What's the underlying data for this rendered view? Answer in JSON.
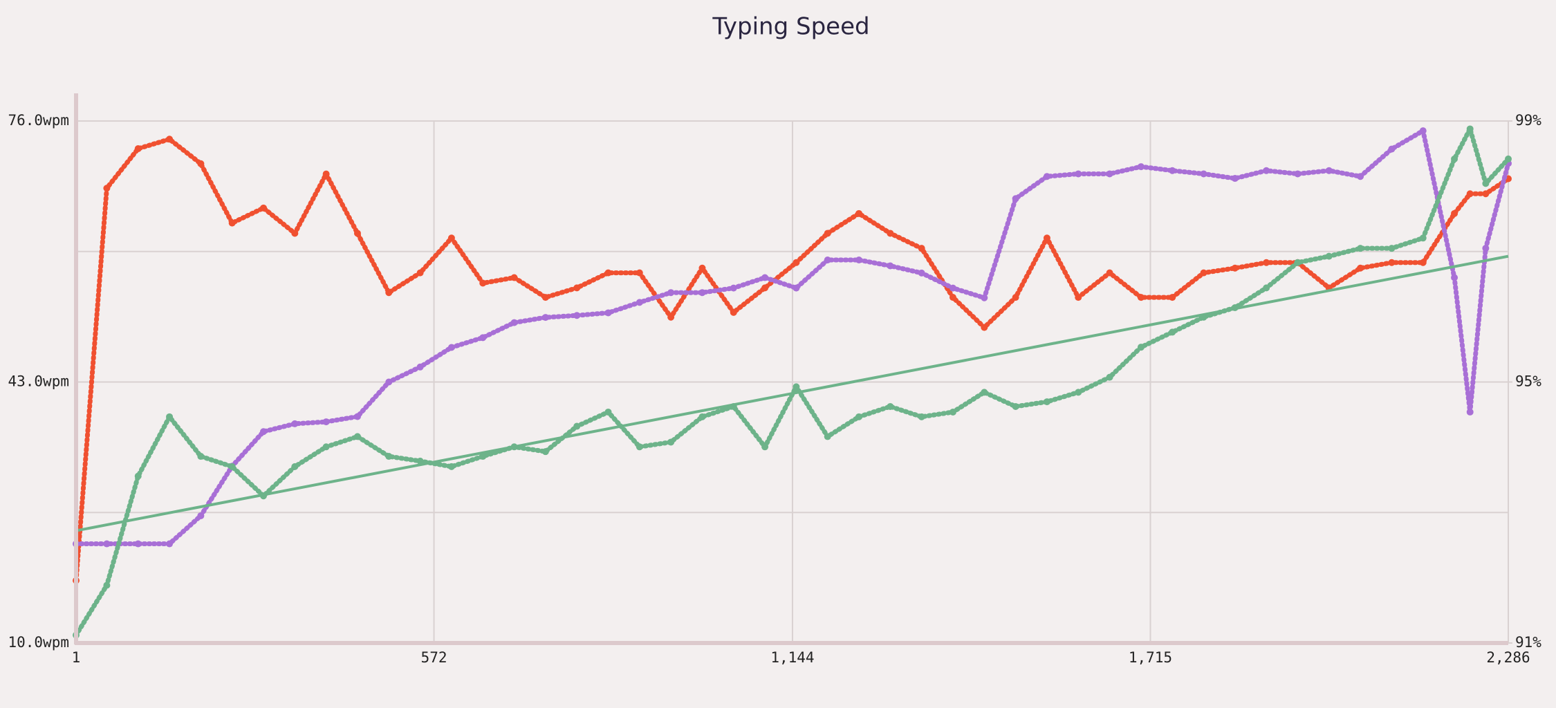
{
  "chart_data": {
    "type": "scatter",
    "title": "Typing Speed",
    "x": [
      1,
      50,
      100,
      150,
      200,
      250,
      300,
      350,
      400,
      450,
      500,
      550,
      600,
      650,
      700,
      750,
      800,
      850,
      900,
      950,
      1000,
      1050,
      1100,
      1150,
      1200,
      1250,
      1300,
      1350,
      1400,
      1450,
      1500,
      1550,
      1600,
      1650,
      1700,
      1750,
      1800,
      1850,
      1900,
      1950,
      2000,
      2050,
      2100,
      2150,
      2200,
      2225,
      2250,
      2286
    ],
    "series": [
      {
        "color": "#f05030",
        "style": "dots",
        "axis": "y",
        "values": [
          17.9,
          67.5,
          72.5,
          73.7,
          70.6,
          63.1,
          65,
          61.8,
          69.3,
          61.8,
          54.3,
          56.8,
          61.2,
          55.5,
          56.2,
          53.7,
          54.9,
          56.8,
          56.8,
          51.2,
          57.4,
          51.8,
          54.9,
          58.1,
          61.8,
          64.3,
          61.8,
          59.9,
          53.7,
          49.9,
          53.7,
          61.2,
          53.7,
          56.8,
          53.7,
          53.7,
          56.8,
          57.4,
          58.1,
          58.1,
          54.9,
          57.4,
          58.1,
          58.1,
          64.3,
          66.8,
          66.8,
          68.7
        ]
      },
      {
        "color": "#a86fd6",
        "style": "dots",
        "axis": "y2",
        "values": [
          92.52,
          92.52,
          92.52,
          92.52,
          92.95,
          93.71,
          94.24,
          94.36,
          94.39,
          94.47,
          95.0,
          95.23,
          95.53,
          95.68,
          95.91,
          95.99,
          96.02,
          96.06,
          96.22,
          96.37,
          96.37,
          96.44,
          96.6,
          96.44,
          96.87,
          96.87,
          96.78,
          96.67,
          96.44,
          96.29,
          97.81,
          98.15,
          98.19,
          98.19,
          98.3,
          98.24,
          98.19,
          98.12,
          98.24,
          98.19,
          98.24,
          98.15,
          98.57,
          98.85,
          96.6,
          94.54,
          97.05,
          98.35
        ]
      },
      {
        "color": "#6db38a",
        "style": "dots",
        "axis": "y",
        "values": [
          11.0,
          17.3,
          31.1,
          38.6,
          33.6,
          32.3,
          28.6,
          32.3,
          34.8,
          36.1,
          33.6,
          33.0,
          32.3,
          33.6,
          34.8,
          34.2,
          37.4,
          39.2,
          34.8,
          35.4,
          38.6,
          39.9,
          34.8,
          42.4,
          36.1,
          38.6,
          39.9,
          38.6,
          39.2,
          41.7,
          39.9,
          40.5,
          41.7,
          43.6,
          47.4,
          49.3,
          51.2,
          52.4,
          54.9,
          58.1,
          58.9,
          59.9,
          59.9,
          61.2,
          71.2,
          75.0,
          68.1,
          71.2
        ]
      },
      {
        "color": "#6db38a",
        "style": "line",
        "axis": "y",
        "x": [
          1,
          2286
        ],
        "values": [
          24.2,
          58.9
        ]
      }
    ],
    "xlim": [
      1,
      2286
    ],
    "xticks": [
      1,
      572,
      {
        "value": 1144,
        "label": "1,144"
      },
      {
        "value": 1715,
        "label": "1,715"
      },
      {
        "value": 2286,
        "label": "2,286"
      }
    ],
    "ylim": [
      10,
      76
    ],
    "yticks": [
      {
        "value": 10,
        "label": "10.0wpm"
      },
      {
        "value": 26.5,
        "label": null
      },
      {
        "value": 43,
        "label": "43.0wpm"
      },
      {
        "value": 59.5,
        "label": null
      },
      {
        "value": 76,
        "label": "76.0wpm"
      }
    ],
    "y2lim": [
      91,
      99
    ],
    "y2ticks": [
      {
        "value": 91,
        "label": "91%"
      },
      {
        "value": 95,
        "label": "95%"
      },
      {
        "value": 99,
        "label": "99%"
      }
    ],
    "grid": true
  }
}
